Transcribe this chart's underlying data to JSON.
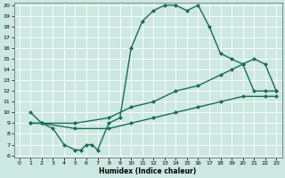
{
  "xlabel": "Humidex (Indice chaleur)",
  "bg_color": "#cce8e0",
  "line_color": "#1a6b5a",
  "grid_color": "#ffffff",
  "ylim": [
    6,
    20
  ],
  "xlim": [
    -0.5,
    23.5
  ],
  "yticks": [
    6,
    7,
    8,
    9,
    10,
    11,
    12,
    13,
    14,
    15,
    16,
    17,
    18,
    19,
    20
  ],
  "xticks": [
    0,
    1,
    2,
    3,
    4,
    5,
    6,
    7,
    8,
    9,
    10,
    11,
    12,
    13,
    14,
    15,
    16,
    17,
    18,
    19,
    20,
    21,
    22,
    23
  ],
  "curve1_x": [
    1,
    2,
    3,
    4,
    5,
    5.5,
    6,
    6.5,
    7,
    8,
    9,
    10,
    11,
    12,
    13,
    14,
    15,
    16,
    17,
    18,
    19,
    20,
    21,
    22,
    23
  ],
  "curve1_y": [
    10,
    9,
    8.5,
    7,
    6.5,
    6.5,
    7,
    7,
    6.5,
    9,
    9.5,
    16,
    18.5,
    19.5,
    20,
    20,
    19.5,
    20,
    18,
    15.5,
    15,
    14.5,
    12,
    12,
    12
  ],
  "curve2_x": [
    1,
    2,
    5,
    8,
    10,
    12,
    14,
    16,
    18,
    19,
    20,
    21,
    22,
    23
  ],
  "curve2_y": [
    9,
    9,
    9,
    9.5,
    10.5,
    11,
    12,
    12.5,
    13.5,
    14,
    14.5,
    15,
    14.5,
    12
  ],
  "curve3_x": [
    1,
    2,
    5,
    8,
    10,
    12,
    14,
    16,
    18,
    20,
    22,
    23
  ],
  "curve3_y": [
    9,
    9,
    8.5,
    8.5,
    9,
    9.5,
    10,
    10.5,
    11,
    11.5,
    11.5,
    11.5
  ],
  "markersize": 2.5,
  "linewidth": 1.0
}
